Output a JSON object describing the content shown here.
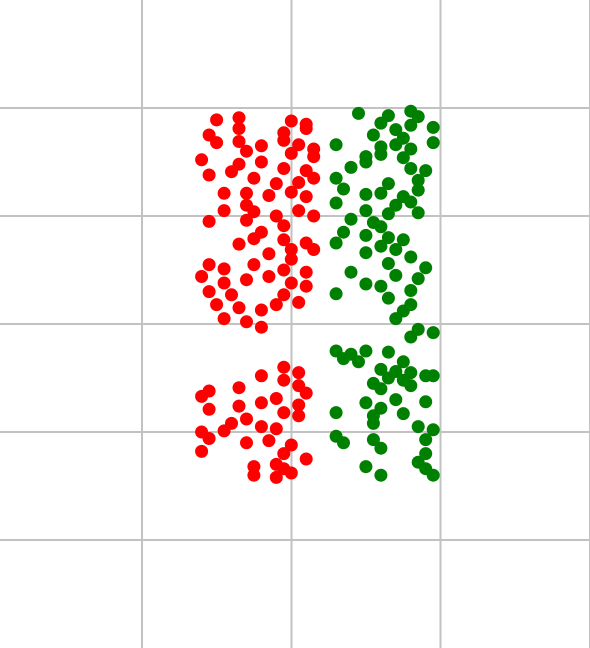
{
  "chart_data": {
    "type": "scatter",
    "title": "",
    "xlabel": "",
    "ylabel": "",
    "grid": true,
    "legend": "none",
    "xlim": [
      -2.9,
      5.0
    ],
    "ylim": [
      -1.0,
      5.0
    ],
    "grid_x": [
      -1,
      1,
      3,
      5
    ],
    "grid_y": [
      0,
      1,
      2,
      3,
      4
    ],
    "series": [
      {
        "color": "#ff0000",
        "points": [
          [
            0.0,
            3.89
          ],
          [
            0.3,
            3.91
          ],
          [
            1.0,
            3.88
          ],
          [
            1.2,
            3.85
          ],
          [
            0.3,
            3.81
          ],
          [
            0.9,
            3.77
          ],
          [
            1.2,
            3.81
          ],
          [
            -0.1,
            3.75
          ],
          [
            0.0,
            3.68
          ],
          [
            0.3,
            3.69
          ],
          [
            0.6,
            3.65
          ],
          [
            0.9,
            3.7
          ],
          [
            1.1,
            3.66
          ],
          [
            1.3,
            3.62
          ],
          [
            0.4,
            3.6
          ],
          [
            1.0,
            3.58
          ],
          [
            1.3,
            3.55
          ],
          [
            -0.2,
            3.52
          ],
          [
            0.3,
            3.48
          ],
          [
            0.6,
            3.5
          ],
          [
            0.9,
            3.44
          ],
          [
            1.2,
            3.42
          ],
          [
            -0.1,
            3.38
          ],
          [
            0.2,
            3.41
          ],
          [
            0.5,
            3.35
          ],
          [
            0.8,
            3.3
          ],
          [
            1.1,
            3.31
          ],
          [
            1.3,
            3.35
          ],
          [
            0.1,
            3.21
          ],
          [
            0.4,
            3.21
          ],
          [
            0.7,
            3.19
          ],
          [
            1.0,
            3.22
          ],
          [
            1.2,
            3.18
          ],
          [
            0.1,
            3.05
          ],
          [
            0.4,
            3.1
          ],
          [
            0.5,
            3.04
          ],
          [
            0.8,
            3.0
          ],
          [
            1.1,
            3.05
          ],
          [
            1.3,
            3.0
          ],
          [
            -0.1,
            2.95
          ],
          [
            0.4,
            2.96
          ],
          [
            0.9,
            2.91
          ],
          [
            0.6,
            2.85
          ],
          [
            0.9,
            2.78
          ],
          [
            1.2,
            2.75
          ],
          [
            0.3,
            2.74
          ],
          [
            0.5,
            2.79
          ],
          [
            1.0,
            2.69
          ],
          [
            1.3,
            2.69
          ],
          [
            0.7,
            2.65
          ],
          [
            1.0,
            2.6
          ],
          [
            -0.1,
            2.55
          ],
          [
            0.1,
            2.51
          ],
          [
            0.5,
            2.55
          ],
          [
            0.9,
            2.5
          ],
          [
            1.2,
            2.48
          ],
          [
            -0.2,
            2.44
          ],
          [
            0.1,
            2.38
          ],
          [
            0.4,
            2.41
          ],
          [
            0.7,
            2.44
          ],
          [
            1.0,
            2.38
          ],
          [
            1.2,
            2.35
          ],
          [
            -0.1,
            2.3
          ],
          [
            0.2,
            2.27
          ],
          [
            0.9,
            2.27
          ],
          [
            0.0,
            2.18
          ],
          [
            0.3,
            2.15
          ],
          [
            0.6,
            2.13
          ],
          [
            0.8,
            2.18
          ],
          [
            1.1,
            2.2
          ],
          [
            0.1,
            2.05
          ],
          [
            0.4,
            2.02
          ],
          [
            0.6,
            1.97
          ],
          [
            0.9,
            1.6
          ],
          [
            1.1,
            1.55
          ],
          [
            0.6,
            1.52
          ],
          [
            0.9,
            1.48
          ],
          [
            1.1,
            1.43
          ],
          [
            -0.1,
            1.38
          ],
          [
            0.3,
            1.41
          ],
          [
            1.2,
            1.36
          ],
          [
            -0.2,
            1.33
          ],
          [
            0.8,
            1.31
          ],
          [
            1.1,
            1.25
          ],
          [
            -0.1,
            1.21
          ],
          [
            0.3,
            1.24
          ],
          [
            0.6,
            1.27
          ],
          [
            0.9,
            1.18
          ],
          [
            1.1,
            1.15
          ],
          [
            0.4,
            1.12
          ],
          [
            0.2,
            1.08
          ],
          [
            0.6,
            1.05
          ],
          [
            -0.2,
            1.0
          ],
          [
            0.1,
            1.01
          ],
          [
            0.8,
            1.03
          ],
          [
            -0.1,
            0.94
          ],
          [
            0.4,
            0.9
          ],
          [
            0.7,
            0.92
          ],
          [
            1.0,
            0.88
          ],
          [
            -0.2,
            0.82
          ],
          [
            0.9,
            0.8
          ],
          [
            1.2,
            0.75
          ],
          [
            0.8,
            0.7
          ],
          [
            0.5,
            0.68
          ],
          [
            0.9,
            0.66
          ],
          [
            1.0,
            0.62
          ],
          [
            0.5,
            0.6
          ],
          [
            0.8,
            0.58
          ]
        ]
      },
      {
        "color": "#008000",
        "points": [
          [
            1.9,
            3.95
          ],
          [
            2.3,
            3.93
          ],
          [
            2.7,
            3.92
          ],
          [
            2.6,
            3.97
          ],
          [
            2.2,
            3.86
          ],
          [
            2.4,
            3.8
          ],
          [
            2.6,
            3.84
          ],
          [
            2.9,
            3.82
          ],
          [
            2.1,
            3.75
          ],
          [
            2.5,
            3.72
          ],
          [
            1.6,
            3.66
          ],
          [
            2.2,
            3.64
          ],
          [
            2.4,
            3.66
          ],
          [
            2.6,
            3.62
          ],
          [
            2.9,
            3.68
          ],
          [
            2.0,
            3.55
          ],
          [
            2.2,
            3.57
          ],
          [
            2.5,
            3.54
          ],
          [
            2.0,
            3.5
          ],
          [
            1.8,
            3.45
          ],
          [
            2.6,
            3.44
          ],
          [
            2.8,
            3.42
          ],
          [
            1.6,
            3.35
          ],
          [
            2.3,
            3.3
          ],
          [
            2.7,
            3.33
          ],
          [
            1.7,
            3.25
          ],
          [
            2.0,
            3.2
          ],
          [
            2.2,
            3.21
          ],
          [
            2.5,
            3.18
          ],
          [
            2.7,
            3.24
          ],
          [
            1.6,
            3.12
          ],
          [
            2.4,
            3.1
          ],
          [
            2.6,
            3.13
          ],
          [
            2.0,
            3.05
          ],
          [
            2.3,
            3.02
          ],
          [
            2.7,
            3.03
          ],
          [
            1.8,
            2.97
          ],
          [
            2.1,
            2.94
          ],
          [
            2.2,
            2.9
          ],
          [
            1.7,
            2.85
          ],
          [
            2.0,
            2.82
          ],
          [
            2.3,
            2.8
          ],
          [
            2.5,
            2.78
          ],
          [
            1.6,
            2.75
          ],
          [
            2.2,
            2.72
          ],
          [
            2.4,
            2.69
          ],
          [
            2.0,
            2.66
          ],
          [
            2.6,
            2.62
          ],
          [
            2.3,
            2.56
          ],
          [
            2.8,
            2.52
          ],
          [
            1.8,
            2.48
          ],
          [
            2.4,
            2.45
          ],
          [
            2.7,
            2.42
          ],
          [
            2.0,
            2.37
          ],
          [
            2.2,
            2.35
          ],
          [
            2.6,
            2.31
          ],
          [
            1.6,
            2.28
          ],
          [
            2.3,
            2.24
          ],
          [
            2.6,
            2.18
          ],
          [
            2.5,
            2.12
          ],
          [
            2.4,
            2.05
          ],
          [
            2.7,
            1.95
          ],
          [
            2.9,
            1.92
          ],
          [
            2.6,
            1.88
          ],
          [
            1.6,
            1.75
          ],
          [
            1.8,
            1.72
          ],
          [
            2.0,
            1.75
          ],
          [
            2.3,
            1.74
          ],
          [
            1.7,
            1.68
          ],
          [
            1.9,
            1.65
          ],
          [
            2.5,
            1.65
          ],
          [
            2.2,
            1.58
          ],
          [
            2.4,
            1.56
          ],
          [
            2.6,
            1.55
          ],
          [
            2.8,
            1.52
          ],
          [
            2.1,
            1.45
          ],
          [
            2.3,
            1.5
          ],
          [
            2.5,
            1.48
          ],
          [
            2.9,
            1.52
          ],
          [
            2.2,
            1.4
          ],
          [
            2.6,
            1.43
          ],
          [
            2.4,
            1.3
          ],
          [
            2.0,
            1.27
          ],
          [
            2.8,
            1.28
          ],
          [
            2.2,
            1.22
          ],
          [
            1.6,
            1.18
          ],
          [
            2.1,
            1.15
          ],
          [
            2.5,
            1.17
          ],
          [
            2.1,
            1.08
          ],
          [
            2.7,
            1.05
          ],
          [
            2.9,
            1.02
          ],
          [
            1.6,
            0.96
          ],
          [
            2.1,
            0.93
          ],
          [
            1.7,
            0.9
          ],
          [
            2.8,
            0.93
          ],
          [
            2.2,
            0.85
          ],
          [
            2.8,
            0.8
          ],
          [
            2.7,
            0.72
          ],
          [
            2.0,
            0.68
          ],
          [
            2.8,
            0.66
          ],
          [
            2.2,
            0.6
          ],
          [
            2.9,
            0.6
          ]
        ]
      }
    ]
  }
}
